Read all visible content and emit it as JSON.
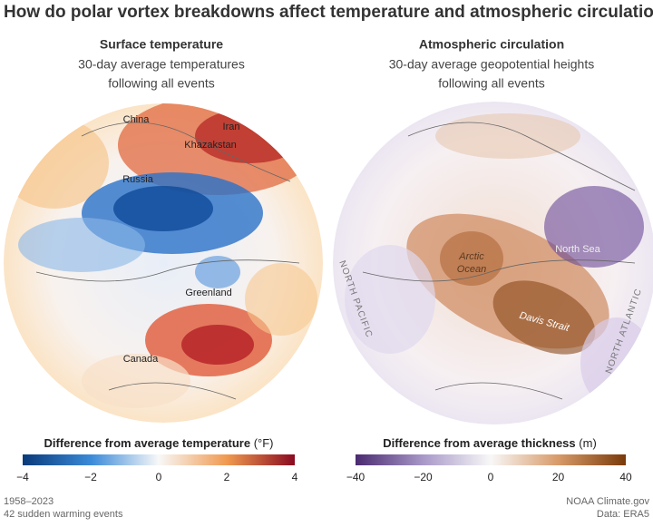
{
  "header": {
    "title": "How do polar vortex breakdowns affect temperature and atmospheric circulation?"
  },
  "panels": [
    {
      "title": "Surface temperature",
      "subtitle_lines": [
        "30-day average temperatures",
        "following all events"
      ],
      "map_labels": [
        "China",
        "Iran",
        "Khazakstan",
        "Russia",
        "Greenland",
        "Canada"
      ],
      "legend": {
        "title": "Difference from average temperature",
        "unit": "(°F)",
        "ticks": [
          "−4",
          "−2",
          "0",
          "2",
          "4"
        ]
      }
    },
    {
      "title": "Atmospheric circulation",
      "subtitle_lines": [
        "30-day average geopotential heights",
        "following all events"
      ],
      "map_labels": [
        "Arctic",
        "Ocean",
        "North Sea",
        "Davis Strait",
        "NORTH PACIFIC",
        "NORTH ATLANTIC"
      ],
      "legend": {
        "title": "Difference from average thickness",
        "unit": "(m)",
        "ticks": [
          "−40",
          "−20",
          "0",
          "20",
          "40"
        ]
      }
    }
  ],
  "footer": {
    "left": [
      "1958–2023",
      "42 sudden warming events"
    ],
    "right": [
      "NOAA Climate.gov",
      "Data: ERA5"
    ]
  }
}
